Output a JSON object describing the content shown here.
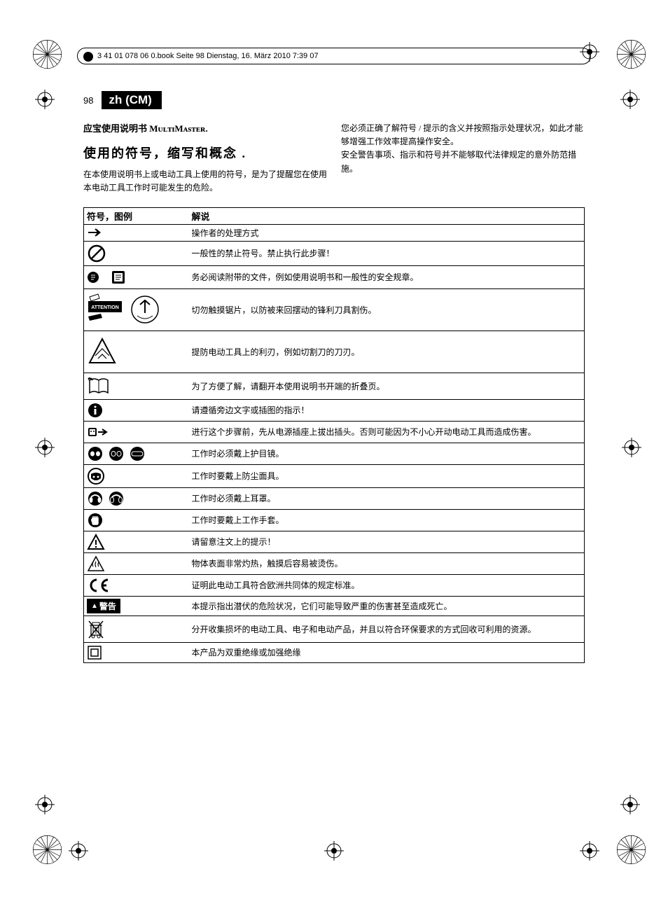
{
  "header": {
    "book_info": "3 41 01 078 06 0.book  Seite 98  Dienstag, 16. März 2010  7:39 07"
  },
  "page": {
    "number": "98",
    "lang_badge": "zh (CM)"
  },
  "intro": {
    "product_line": "应宝使用说明书 MᴜʟᴛɪMᴀsᴛᴇʀ.",
    "section_title": "使用的符号，缩写和概念 .",
    "left_p1": "在本使用说明书上或电动工具上使用的符号，是为了提醒您在使用本电动工具工作时可能发生的危险。",
    "right_p1": "您必须正确了解符号 / 提示的含义并按照指示处理状况，如此才能够增强工作效率提高操作安全。",
    "right_p2": "安全警告事项、指示和符号并不能够取代法律规定的意外防范措施。"
  },
  "table": {
    "col1": "符号，图例",
    "col2": "解说",
    "rows": [
      {
        "icon": "arrow",
        "text": "操作者的处理方式"
      },
      {
        "icon": "prohibit",
        "text": "一般性的禁止符号。禁止执行此步骤！"
      },
      {
        "icon": "read-docs",
        "text": "务必阅读附带的文件，例如使用说明书和一般性的安全规章。"
      },
      {
        "icon": "attention-blade",
        "text": "切勿触摸锯片，以防被来回摆动的锋利刀具割伤。"
      },
      {
        "icon": "blade-warning",
        "text": "提防电动工具上的利刃，例如切割刀的刀刃。"
      },
      {
        "icon": "open-page",
        "text": "为了方便了解，请翻开本使用说明书开端的折叠页。"
      },
      {
        "icon": "info",
        "text": "请遵循旁边文字或插图的指示！"
      },
      {
        "icon": "unplug",
        "text": "进行这个步骤前，先从电源插座上拔出插头。否则可能因为不小心开动电动工具而造成伤害。"
      },
      {
        "icon": "goggles",
        "text": "工作时必须戴上护目镜。"
      },
      {
        "icon": "mask",
        "text": "工作时要戴上防尘面具。"
      },
      {
        "icon": "earmuffs",
        "text": "工作时必须戴上耳罩。"
      },
      {
        "icon": "gloves",
        "text": "工作时要戴上工作手套。"
      },
      {
        "icon": "caution",
        "text": "请留意注文上的提示！"
      },
      {
        "icon": "hot",
        "text": "物体表面非常灼热，触摸后容易被烫伤。"
      },
      {
        "icon": "ce",
        "text": "证明此电动工具符合欧洲共同体的规定标准。"
      },
      {
        "icon": "warning-label",
        "text": "本提示指出潜伏的危险状况，它们可能导致严重的伤害甚至造成死亡。"
      },
      {
        "icon": "weee",
        "text": "分开收集损坏的电动工具、电子和电动产品，并且以符合环保要求的方式回收可利用的资源。"
      },
      {
        "icon": "class2",
        "text": "本产品为双重绝缘或加强绝缘"
      }
    ],
    "warning_label": "警告"
  }
}
